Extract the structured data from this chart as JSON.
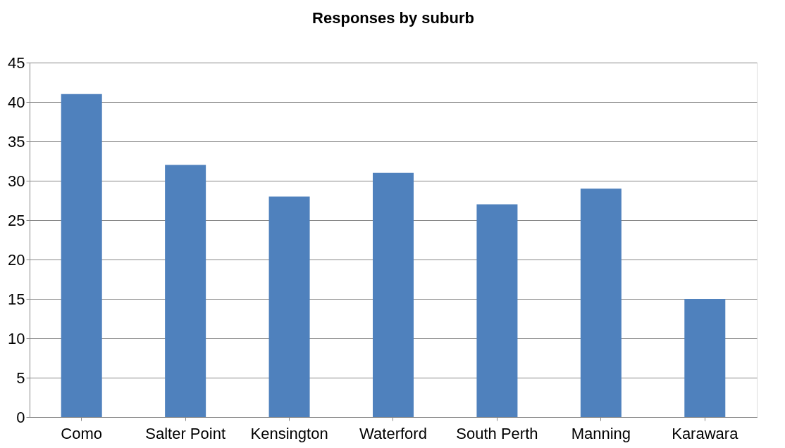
{
  "chart_data": {
    "type": "bar",
    "title": "Responses by suburb",
    "categories": [
      "Como",
      "Salter Point",
      "Kensington",
      "Waterford",
      "South Perth",
      "Manning",
      "Karawara"
    ],
    "values": [
      41,
      32,
      28,
      31,
      27,
      29,
      15
    ],
    "color": "#4f81bd",
    "ylim": [
      0,
      45
    ],
    "yticks": [
      0,
      5,
      10,
      15,
      20,
      25,
      30,
      35,
      40,
      45
    ],
    "grid": "y"
  }
}
